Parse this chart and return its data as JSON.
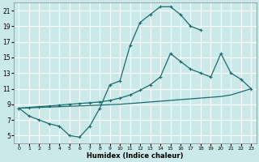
{
  "xlabel": "Humidex (Indice chaleur)",
  "bg_color": "#cce9e9",
  "grid_color": "#ffffff",
  "line_color": "#1a6b6b",
  "xlim": [
    -0.5,
    23.5
  ],
  "ylim": [
    4.0,
    22.0
  ],
  "xticks": [
    0,
    1,
    2,
    3,
    4,
    5,
    6,
    7,
    8,
    9,
    10,
    11,
    12,
    13,
    14,
    15,
    16,
    17,
    18,
    19,
    20,
    21,
    22,
    23
  ],
  "yticks": [
    5,
    7,
    9,
    11,
    13,
    15,
    17,
    19,
    21
  ],
  "line1_x": [
    0,
    1,
    2,
    3,
    4,
    5,
    6,
    7,
    8,
    9,
    10,
    11,
    12,
    13,
    14,
    15,
    16,
    17,
    18
  ],
  "line1_y": [
    8.5,
    7.5,
    7.0,
    6.5,
    6.2,
    5.0,
    4.8,
    6.2,
    8.5,
    11.5,
    12.0,
    16.5,
    19.5,
    20.5,
    21.5,
    21.5,
    20.5,
    19.0,
    18.5
  ],
  "line2_x": [
    0,
    1,
    2,
    3,
    4,
    5,
    6,
    7,
    8,
    9,
    10,
    11,
    12,
    13,
    14,
    15,
    16,
    17,
    18,
    19,
    20,
    21,
    22,
    23
  ],
  "line2_y": [
    8.5,
    8.55,
    8.6,
    8.65,
    8.7,
    8.75,
    8.8,
    8.85,
    8.9,
    8.95,
    9.0,
    9.1,
    9.2,
    9.3,
    9.4,
    9.5,
    9.6,
    9.7,
    9.8,
    9.9,
    10.0,
    10.2,
    10.6,
    11.0
  ],
  "line3_x": [
    0,
    1,
    2,
    3,
    4,
    5,
    6,
    7,
    8,
    9,
    10,
    11,
    12,
    13,
    14,
    15,
    16,
    17,
    18,
    19,
    20,
    21,
    22,
    23
  ],
  "line3_y": [
    8.5,
    8.6,
    8.7,
    8.8,
    8.9,
    9.0,
    9.1,
    9.2,
    9.3,
    9.5,
    9.8,
    10.2,
    10.8,
    11.5,
    12.5,
    15.5,
    14.5,
    13.5,
    13.0,
    12.5,
    15.5,
    13.0,
    12.2,
    11.0
  ]
}
